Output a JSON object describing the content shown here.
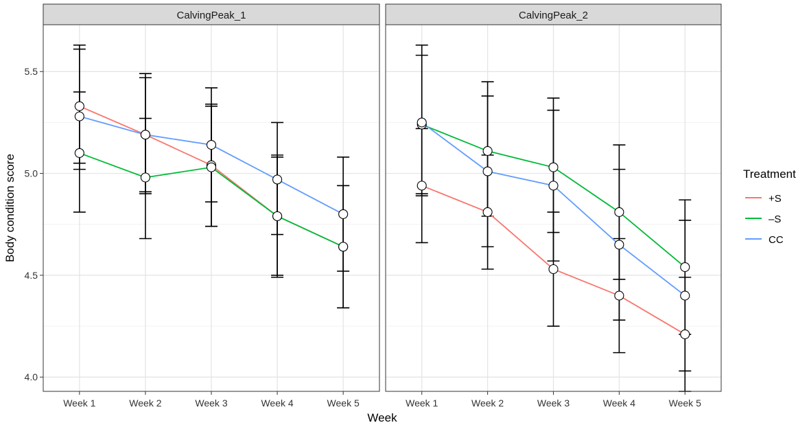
{
  "chart_data": {
    "type": "line",
    "xlabel": "Week",
    "ylabel": "Body condition score",
    "categories": [
      "Week 1",
      "Week 2",
      "Week 3",
      "Week 4",
      "Week 5"
    ],
    "ylim": [
      3.93,
      5.73
    ],
    "yticks": [
      4.0,
      4.5,
      5.0,
      5.5
    ],
    "ytick_labels": [
      "4.0",
      "4.5",
      "5.0",
      "5.5"
    ],
    "legend": {
      "title": "Treatment",
      "position": "right",
      "entries": [
        {
          "name": "+S",
          "color": "#F8766D"
        },
        {
          "name": "–S",
          "color": "#00BA38"
        },
        {
          "name": "CC",
          "color": "#619CFF"
        }
      ]
    },
    "panels": [
      {
        "title": "CalvingPeak_1",
        "series": [
          {
            "name": "+S",
            "color": "#F8766D",
            "values": [
              5.33,
              5.19,
              5.04,
              4.79,
              4.64
            ],
            "lower": [
              5.05,
              4.91,
              4.74,
              4.49,
              4.34
            ],
            "upper": [
              5.61,
              5.47,
              5.34,
              5.09,
              4.94
            ]
          },
          {
            "name": "–S",
            "color": "#00BA38",
            "values": [
              5.1,
              4.98,
              5.03,
              4.79,
              4.64
            ],
            "lower": [
              4.81,
              4.68,
              4.74,
              4.5,
              4.34
            ],
            "upper": [
              5.4,
              5.27,
              5.33,
              5.08,
              4.94
            ]
          },
          {
            "name": "CC",
            "color": "#619CFF",
            "values": [
              5.28,
              5.19,
              5.14,
              4.97,
              4.8
            ],
            "lower": [
              5.02,
              4.9,
              4.86,
              4.7,
              4.52
            ],
            "upper": [
              5.63,
              5.49,
              5.42,
              5.25,
              5.08
            ]
          }
        ]
      },
      {
        "title": "CalvingPeak_2",
        "series": [
          {
            "name": "+S",
            "color": "#F8766D",
            "values": [
              4.94,
              4.81,
              4.53,
              4.4,
              4.21
            ],
            "lower": [
              4.66,
              4.53,
              4.25,
              4.12,
              3.93
            ],
            "upper": [
              5.22,
              5.09,
              4.81,
              4.68,
              4.49
            ]
          },
          {
            "name": "–S",
            "color": "#00BA38",
            "values": [
              5.24,
              5.11,
              5.03,
              4.81,
              4.54
            ],
            "lower": [
              4.89,
              4.79,
              4.71,
              4.48,
              4.21
            ],
            "upper": [
              5.58,
              5.45,
              5.37,
              5.14,
              4.87
            ]
          },
          {
            "name": "CC",
            "color": "#619CFF",
            "values": [
              5.25,
              5.01,
              4.94,
              4.65,
              4.4
            ],
            "lower": [
              4.9,
              4.64,
              4.57,
              4.28,
              4.03
            ],
            "upper": [
              5.63,
              5.38,
              5.31,
              5.02,
              4.77
            ]
          }
        ]
      }
    ]
  }
}
